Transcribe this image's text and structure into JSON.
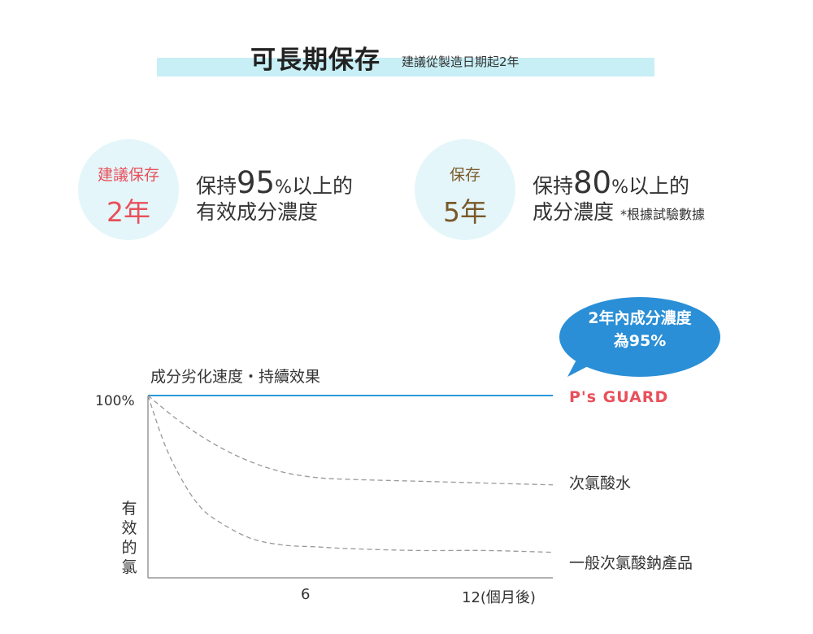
{
  "header": {
    "title": "可長期保存",
    "subtitle": "建議從製造日期起2年"
  },
  "cards": [
    {
      "circle_label": "建議保存",
      "circle_years": "2年",
      "circle_color": "#e8505b",
      "desc_pre": "保持",
      "desc_num": "95",
      "desc_pct": "%",
      "desc_post": "以上的",
      "desc_line2": "有效成分濃度",
      "note": ""
    },
    {
      "circle_label": "保存",
      "circle_years": "5年",
      "circle_color": "#7a5a2a",
      "desc_pre": "保持",
      "desc_num": "80",
      "desc_pct": "%",
      "desc_post": "以上的",
      "desc_line2": "成分濃度",
      "note": "*根據試驗數據"
    }
  ],
  "bubble": {
    "line1": "2年內成分濃度",
    "line2": "為95%",
    "color": "#2a8fd6"
  },
  "chart_data": {
    "type": "line",
    "title": "成分劣化速度・持續效果",
    "ylabel": "有效的氯",
    "xlabel": "",
    "y_tick_labels": [
      {
        "value": 100,
        "label": "100%"
      }
    ],
    "x_tick_labels": [
      {
        "value": 6,
        "label": "6"
      },
      {
        "value": 12,
        "label": "12(個月後)"
      }
    ],
    "xlim": [
      0,
      12
    ],
    "ylim": [
      0,
      100
    ],
    "grid": false,
    "series": [
      {
        "name": "P's GUARD",
        "style": "solid",
        "color": "#2a9ad8",
        "x": [
          0,
          12
        ],
        "y": [
          100,
          100
        ]
      },
      {
        "name": "次氯酸水",
        "style": "dashed",
        "color": "#999999",
        "x": [
          0,
          1,
          2,
          3,
          4,
          5,
          6,
          8,
          10,
          12
        ],
        "y": [
          100,
          85,
          73,
          64,
          58,
          55,
          54,
          53,
          52,
          51
        ]
      },
      {
        "name": "一般次氯酸鈉產品",
        "style": "dashed",
        "color": "#999999",
        "x": [
          0,
          0.5,
          1,
          1.5,
          2,
          3,
          4,
          5,
          6,
          8,
          10,
          12
        ],
        "y": [
          100,
          73,
          54,
          40,
          32,
          22,
          18,
          17,
          16,
          15,
          15,
          14
        ]
      }
    ]
  }
}
